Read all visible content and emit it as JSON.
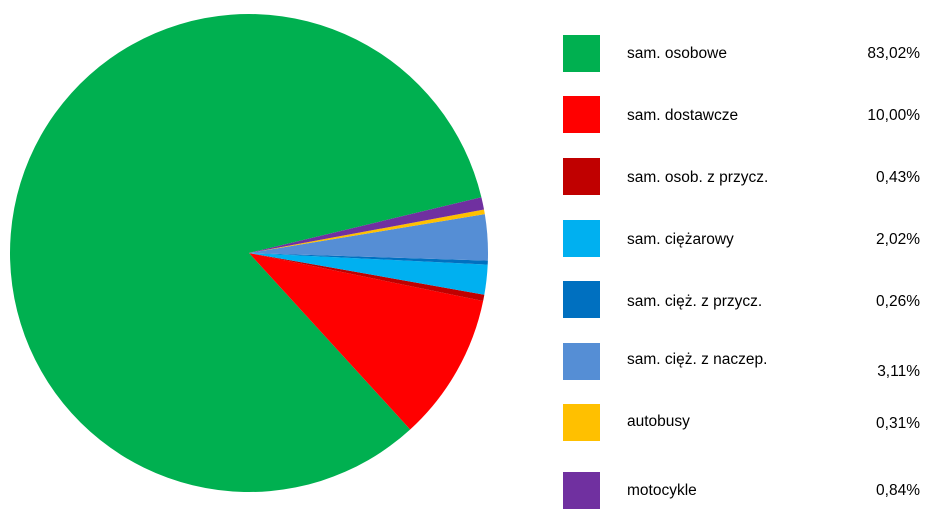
{
  "chart_data": {
    "type": "pie",
    "legend": "right",
    "slices": [
      {
        "label": "sam. osobowe",
        "value": 83.02,
        "display": "83,02%",
        "color": "#00B050"
      },
      {
        "label": "sam. dostawcze",
        "value": 10.0,
        "display": "10,00%",
        "color": "#FF0000"
      },
      {
        "label": "sam. osob. z przycz.",
        "value": 0.43,
        "display": "0,43%",
        "color": "#C00000"
      },
      {
        "label": "sam. ciężarowy",
        "value": 2.02,
        "display": "2,02%",
        "color": "#00B0F0"
      },
      {
        "label": "sam. cięż. z przycz.",
        "value": 0.26,
        "display": "0,26%",
        "color": "#0070C0"
      },
      {
        "label": "sam. cięż. z naczep.",
        "value": 3.11,
        "display": "3,11%",
        "color": "#558ED5"
      },
      {
        "label": "autobusy",
        "value": 0.31,
        "display": "0,31%",
        "color": "#FFC000"
      },
      {
        "label": "motocykle",
        "value": 0.84,
        "display": "0,84%",
        "color": "#7030A0"
      }
    ]
  }
}
